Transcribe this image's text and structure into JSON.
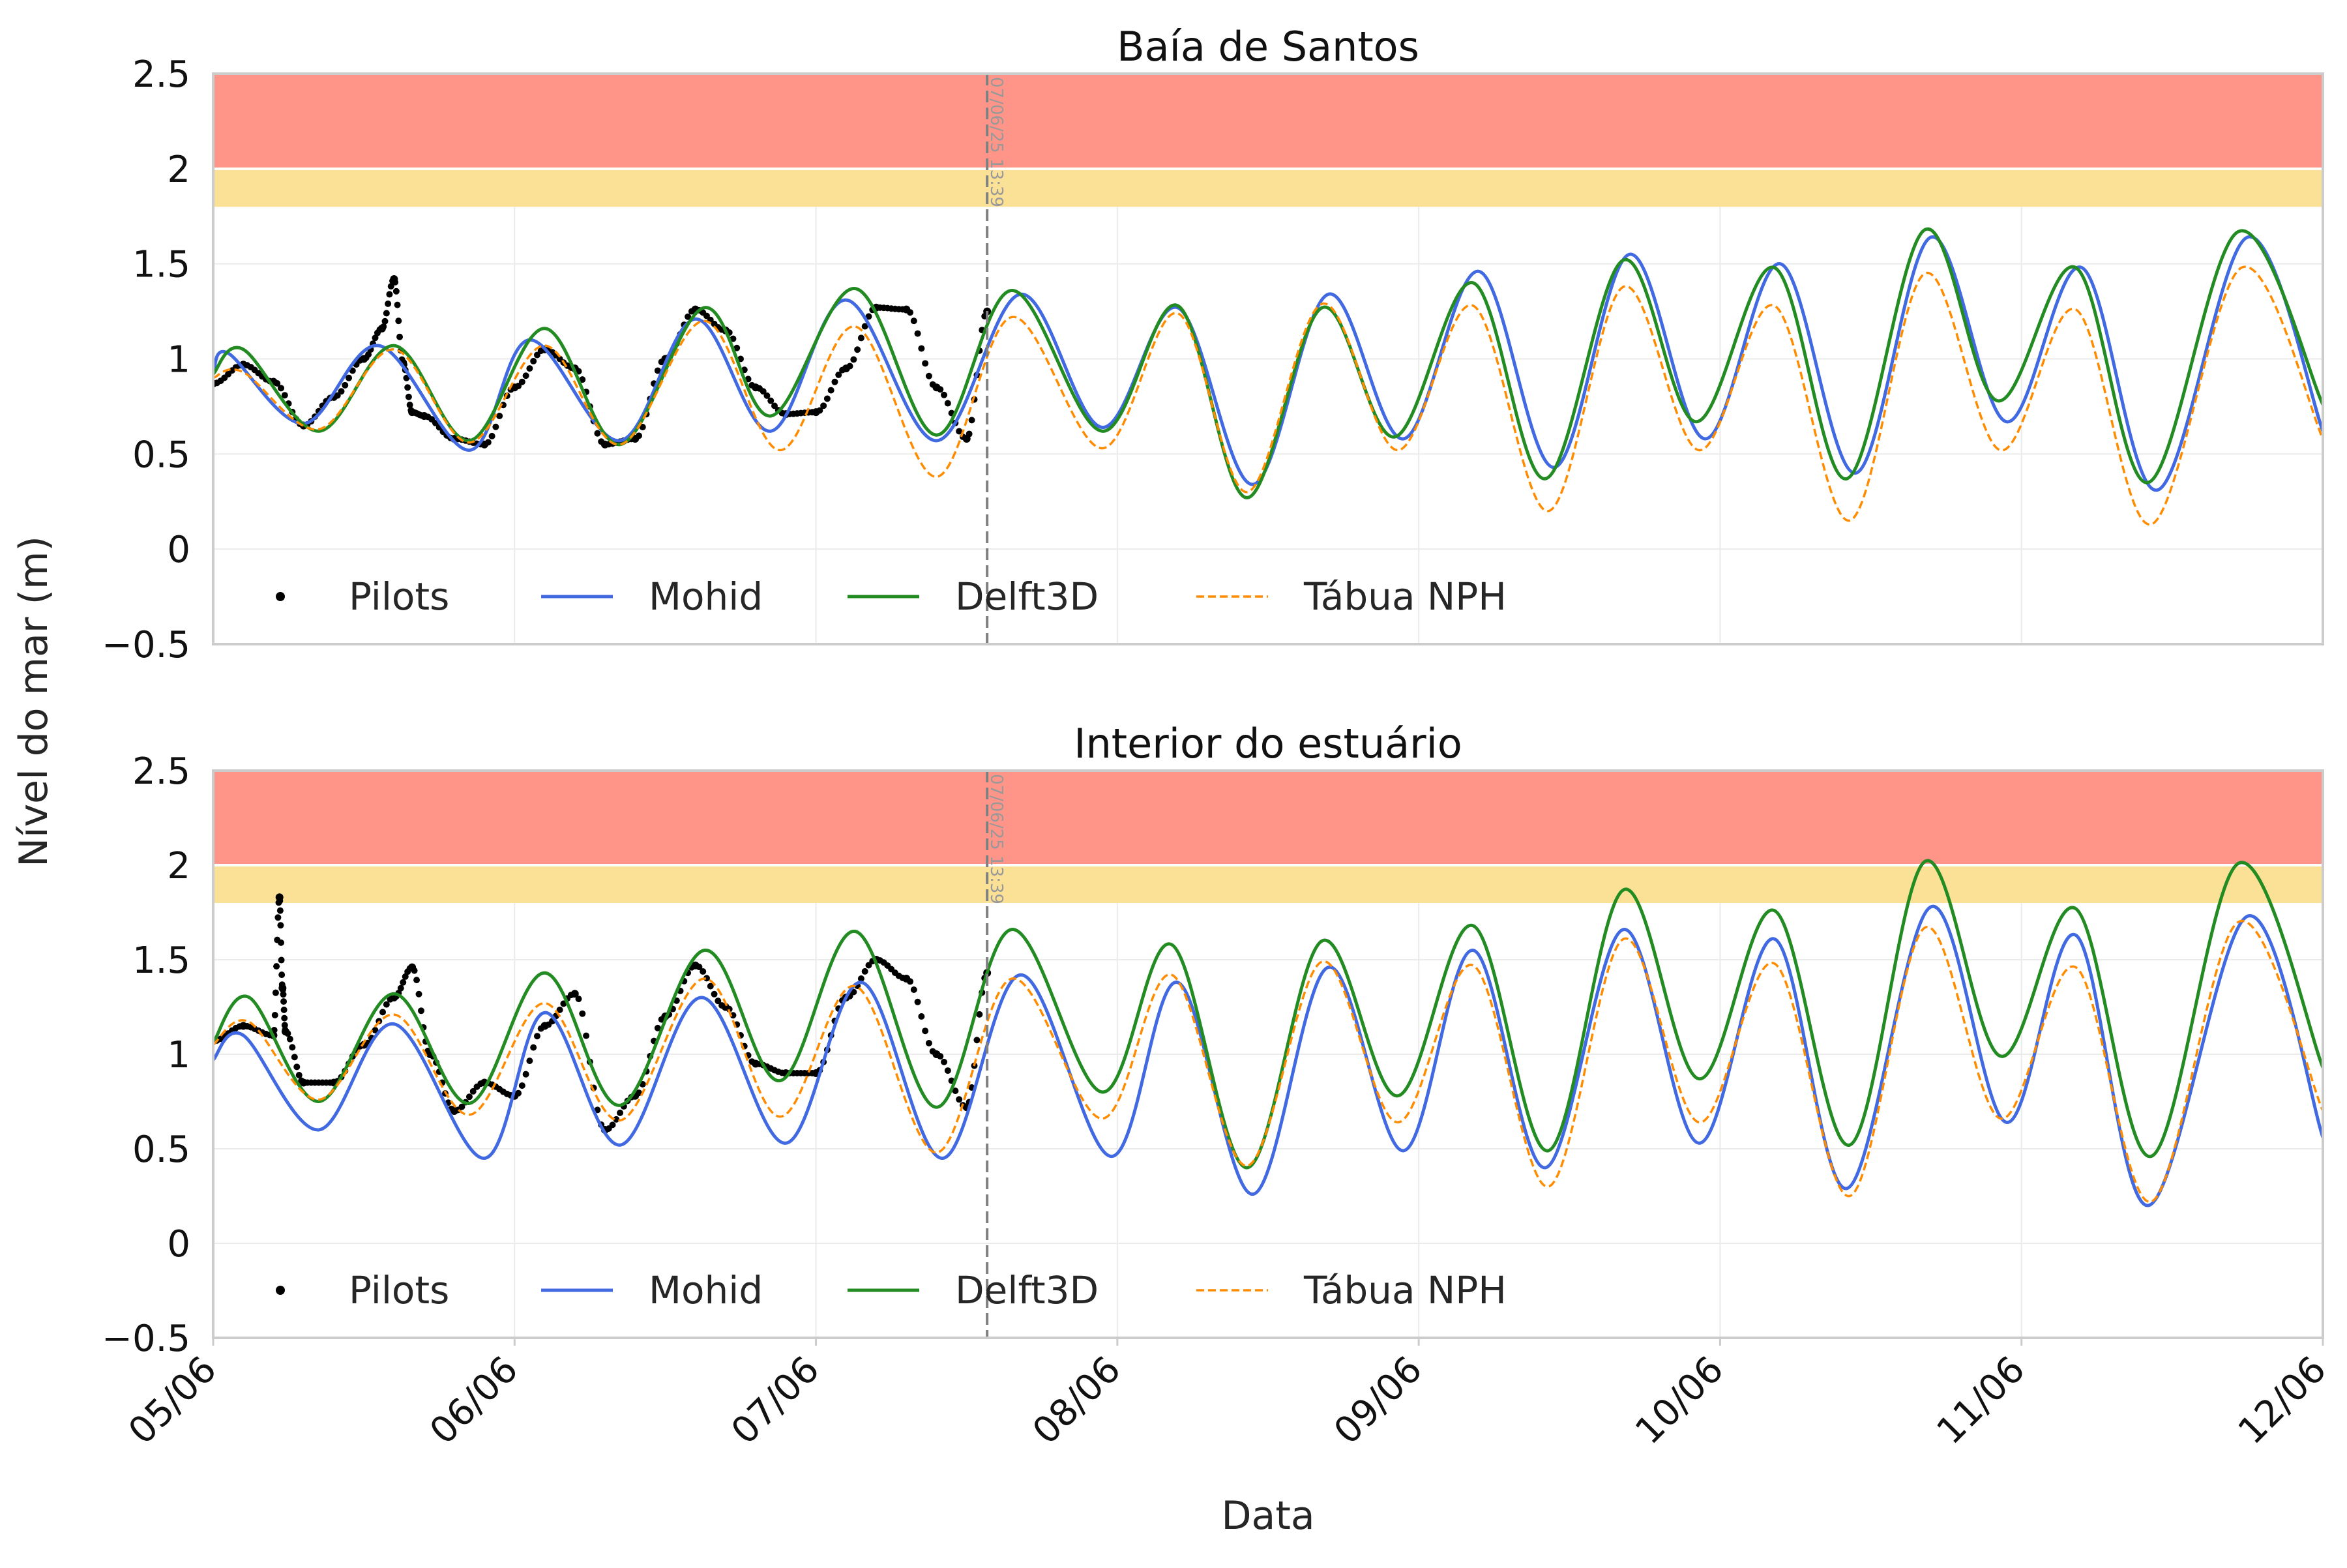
{
  "figure": {
    "shared_ylabel": "Nível do mar (m)",
    "shared_xlabel": "Data",
    "colors": {
      "danger_band": "#ff9488",
      "warning_band": "#fbe196",
      "pilots": "#000000",
      "mohid": "#4169e1",
      "delft3d": "#228b22",
      "tabua": "#ff8c00",
      "nowline": "#808080"
    }
  },
  "chart_data": [
    {
      "type": "line",
      "title": "Baía de Santos",
      "xlabel": "Data",
      "ylabel": "Nível do mar (m)",
      "ylim": [
        -0.5,
        2.5
      ],
      "xlim_days": [
        0,
        7
      ],
      "x_ticks": [
        "05/06",
        "06/06",
        "07/06",
        "08/06",
        "09/06",
        "10/06",
        "11/06",
        "12/06"
      ],
      "y_ticks": [
        "−0.5",
        "0",
        "0.5",
        "1",
        "1.5",
        "2",
        "2.5"
      ],
      "grid": true,
      "legend_position": "bottom-left",
      "bands": [
        {
          "name": "warning",
          "from": 1.8,
          "to": 2.0,
          "color": "#fbe196"
        },
        {
          "name": "danger",
          "from": 2.0,
          "to": 2.5,
          "color": "#ff9488"
        }
      ],
      "vline": {
        "day": 2.568,
        "label": "07/06/25 13:39"
      },
      "series": [
        {
          "name": "Pilots",
          "style": "dots",
          "color": "#000000",
          "x_days": [
            0.0,
            0.1,
            0.2,
            0.3,
            0.4,
            0.5,
            0.56,
            0.6,
            0.63,
            0.66,
            0.7,
            0.8,
            0.9,
            1.0,
            1.1,
            1.2,
            1.3,
            1.4,
            1.5,
            1.6,
            1.7,
            1.8,
            1.9,
            2.0,
            2.1,
            2.2,
            2.3,
            2.4,
            2.5,
            2.568
          ],
          "values": [
            0.87,
            0.97,
            0.88,
            0.65,
            0.8,
            1.0,
            1.16,
            1.42,
            0.98,
            0.72,
            0.7,
            0.58,
            0.55,
            0.85,
            1.05,
            0.95,
            0.55,
            0.58,
            1.0,
            1.26,
            1.15,
            0.85,
            0.71,
            0.72,
            0.95,
            1.27,
            1.26,
            0.85,
            0.58,
            1.25
          ]
        },
        {
          "name": "Mohid",
          "style": "line",
          "color": "#4169e1",
          "x_days": [
            0.0,
            0.05,
            0.3,
            0.55,
            0.85,
            1.05,
            1.35,
            1.6,
            1.85,
            2.1,
            2.4,
            2.68,
            2.95,
            3.2,
            3.45,
            3.7,
            3.95,
            4.2,
            4.45,
            4.7,
            4.95,
            5.2,
            5.45,
            5.7,
            5.95,
            6.2,
            6.45,
            6.75,
            7.0
          ],
          "values": [
            0.92,
            1.03,
            0.66,
            1.07,
            0.52,
            1.1,
            0.57,
            1.21,
            0.62,
            1.31,
            0.57,
            1.34,
            0.64,
            1.27,
            0.34,
            1.34,
            0.58,
            1.46,
            0.43,
            1.55,
            0.58,
            1.5,
            0.4,
            1.64,
            0.67,
            1.48,
            0.31,
            1.64,
            0.62
          ]
        },
        {
          "name": "Delft3D",
          "style": "line",
          "color": "#228b22",
          "x_days": [
            0.0,
            0.1,
            0.35,
            0.6,
            0.85,
            1.1,
            1.35,
            1.63,
            1.85,
            2.13,
            2.4,
            2.65,
            2.95,
            3.2,
            3.43,
            3.68,
            3.92,
            4.18,
            4.42,
            4.68,
            4.92,
            5.18,
            5.42,
            5.68,
            5.92,
            6.18,
            6.42,
            6.72,
            7.0
          ],
          "values": [
            0.92,
            1.05,
            0.62,
            1.07,
            0.57,
            1.16,
            0.55,
            1.27,
            0.7,
            1.37,
            0.6,
            1.36,
            0.62,
            1.28,
            0.27,
            1.27,
            0.59,
            1.4,
            0.37,
            1.52,
            0.67,
            1.48,
            0.37,
            1.68,
            0.78,
            1.48,
            0.35,
            1.67,
            0.76
          ]
        },
        {
          "name": "Tábua NPH",
          "style": "dashed",
          "color": "#ff8c00",
          "x_days": [
            0.0,
            0.1,
            0.35,
            0.6,
            0.85,
            1.1,
            1.35,
            1.63,
            1.88,
            2.13,
            2.4,
            2.65,
            2.95,
            3.2,
            3.43,
            3.68,
            3.93,
            4.18,
            4.43,
            4.68,
            4.93,
            5.18,
            5.43,
            5.68,
            5.93,
            6.18,
            6.43,
            6.73,
            7.0
          ],
          "values": [
            0.9,
            0.93,
            0.63,
            1.05,
            0.56,
            1.07,
            0.55,
            1.2,
            0.52,
            1.17,
            0.38,
            1.22,
            0.53,
            1.24,
            0.3,
            1.29,
            0.52,
            1.28,
            0.2,
            1.38,
            0.52,
            1.28,
            0.15,
            1.45,
            0.52,
            1.26,
            0.13,
            1.48,
            0.58
          ]
        }
      ]
    },
    {
      "type": "line",
      "title": "Interior do estuário",
      "xlabel": "Data",
      "ylabel": "Nível do mar (m)",
      "ylim": [
        -0.5,
        2.5
      ],
      "xlim_days": [
        0,
        7
      ],
      "x_ticks": [
        "05/06",
        "06/06",
        "07/06",
        "08/06",
        "09/06",
        "10/06",
        "11/06",
        "12/06"
      ],
      "y_ticks": [
        "−0.5",
        "0",
        "0.5",
        "1",
        "1.5",
        "2",
        "2.5"
      ],
      "grid": true,
      "legend_position": "bottom-left",
      "bands": [
        {
          "name": "warning",
          "from": 1.8,
          "to": 2.0,
          "color": "#fbe196"
        },
        {
          "name": "danger",
          "from": 2.0,
          "to": 2.5,
          "color": "#ff9488"
        }
      ],
      "vline": {
        "day": 2.568,
        "label": "07/06/25 13:39"
      },
      "series": [
        {
          "name": "Pilots",
          "style": "dots",
          "color": "#000000",
          "x_days": [
            0.0,
            0.1,
            0.2,
            0.22,
            0.23,
            0.24,
            0.3,
            0.4,
            0.5,
            0.6,
            0.66,
            0.72,
            0.8,
            0.9,
            1.0,
            1.1,
            1.2,
            1.3,
            1.4,
            1.5,
            1.6,
            1.7,
            1.8,
            1.9,
            2.0,
            2.1,
            2.2,
            2.3,
            2.4,
            2.5,
            2.568
          ],
          "values": [
            1.07,
            1.15,
            1.1,
            1.83,
            1.35,
            1.12,
            0.85,
            0.85,
            1.05,
            1.3,
            1.46,
            1.0,
            0.7,
            0.85,
            0.78,
            1.15,
            1.32,
            0.6,
            0.78,
            1.2,
            1.47,
            1.25,
            0.95,
            0.9,
            0.9,
            1.3,
            1.5,
            1.4,
            1.0,
            0.72,
            1.43
          ]
        },
        {
          "name": "Mohid",
          "style": "line",
          "color": "#4169e1",
          "x_days": [
            0.0,
            0.1,
            0.35,
            0.6,
            0.9,
            1.1,
            1.35,
            1.62,
            1.9,
            2.15,
            2.42,
            2.68,
            2.98,
            3.2,
            3.45,
            3.7,
            3.95,
            4.18,
            4.42,
            4.68,
            4.93,
            5.18,
            5.42,
            5.7,
            5.95,
            6.18,
            6.42,
            6.75,
            7.0
          ],
          "values": [
            0.97,
            1.1,
            0.6,
            1.16,
            0.45,
            1.22,
            0.52,
            1.3,
            0.53,
            1.38,
            0.45,
            1.42,
            0.46,
            1.38,
            0.26,
            1.46,
            0.49,
            1.55,
            0.4,
            1.66,
            0.53,
            1.61,
            0.29,
            1.78,
            0.64,
            1.63,
            0.2,
            1.73,
            0.56
          ]
        },
        {
          "name": "Delft3D",
          "style": "line",
          "color": "#228b22",
          "x_days": [
            0.0,
            0.12,
            0.35,
            0.6,
            0.85,
            1.1,
            1.35,
            1.63,
            1.88,
            2.13,
            2.4,
            2.65,
            2.95,
            3.18,
            3.43,
            3.68,
            3.93,
            4.18,
            4.43,
            4.68,
            4.93,
            5.18,
            5.43,
            5.68,
            5.93,
            6.18,
            6.43,
            6.72,
            7.0
          ],
          "values": [
            1.06,
            1.3,
            0.75,
            1.32,
            0.74,
            1.43,
            0.73,
            1.55,
            0.86,
            1.65,
            0.72,
            1.66,
            0.8,
            1.58,
            0.4,
            1.6,
            0.78,
            1.68,
            0.49,
            1.87,
            0.87,
            1.76,
            0.52,
            2.02,
            0.99,
            1.77,
            0.46,
            2.01,
            0.93
          ]
        },
        {
          "name": "Tábua NPH",
          "style": "dashed",
          "color": "#ff8c00",
          "x_days": [
            0.0,
            0.12,
            0.35,
            0.6,
            0.85,
            1.1,
            1.35,
            1.63,
            1.88,
            2.13,
            2.4,
            2.65,
            2.95,
            3.18,
            3.43,
            3.68,
            3.93,
            4.18,
            4.43,
            4.68,
            4.93,
            5.18,
            5.43,
            5.68,
            5.93,
            6.18,
            6.43,
            6.72,
            7.0
          ],
          "values": [
            1.05,
            1.17,
            0.76,
            1.21,
            0.68,
            1.27,
            0.65,
            1.4,
            0.67,
            1.36,
            0.48,
            1.4,
            0.66,
            1.42,
            0.41,
            1.49,
            0.64,
            1.47,
            0.3,
            1.61,
            0.64,
            1.48,
            0.25,
            1.67,
            0.66,
            1.46,
            0.22,
            1.7,
            0.7
          ]
        }
      ]
    }
  ]
}
